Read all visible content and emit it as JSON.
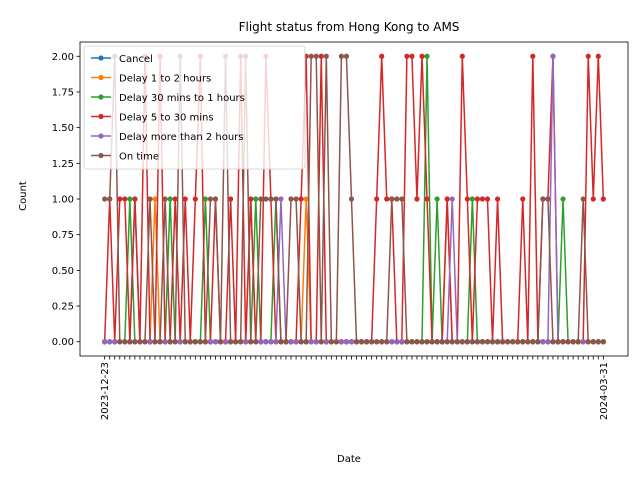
{
  "chart_data": {
    "type": "line",
    "title": "Flight status from Hong Kong to AMS",
    "xlabel": "Date",
    "ylabel": "Count",
    "ylim": [
      -0.1,
      2.1
    ],
    "yticks": [
      "0.00",
      "0.25",
      "0.50",
      "0.75",
      "1.00",
      "1.25",
      "1.50",
      "1.75",
      "2.00"
    ],
    "ytick_values": [
      0,
      0.25,
      0.5,
      0.75,
      1.0,
      1.25,
      1.5,
      1.75,
      2.0
    ],
    "grid": false,
    "legend_position": "top-left",
    "x_first_label": "2023-12-23",
    "x_last_label": "2024-03-31",
    "x_count": 100,
    "series": [
      {
        "name": "Cancel",
        "color": "#1f77b4",
        "values": [
          0,
          0,
          0,
          0,
          0,
          0,
          1,
          0,
          0,
          0,
          0,
          0,
          0,
          0,
          0,
          0,
          0,
          0,
          0,
          0,
          0,
          0,
          0,
          0,
          0,
          0,
          0,
          0,
          0,
          0,
          0,
          0,
          0,
          0,
          0,
          0,
          0,
          0,
          0,
          0,
          0,
          0,
          0,
          0,
          0,
          0,
          0,
          0,
          0,
          0,
          0,
          0,
          0,
          0,
          0,
          0,
          0,
          0,
          0,
          0,
          0,
          0,
          0,
          0,
          0,
          0,
          0,
          0,
          0,
          0,
          0,
          0,
          0,
          0,
          0,
          0,
          0,
          0,
          0,
          0,
          0,
          0,
          0,
          0,
          0,
          0,
          0,
          0,
          0,
          0,
          0,
          0,
          0,
          0,
          0,
          0,
          0,
          0,
          0,
          0
        ]
      },
      {
        "name": "Delay 1 to 2 hours",
        "color": "#ff7f0e",
        "values": [
          0,
          0,
          0,
          0,
          0,
          0,
          0,
          0,
          0,
          0,
          1,
          0,
          0,
          0,
          0,
          0,
          0,
          0,
          0,
          0,
          0,
          0,
          0,
          0,
          0,
          0,
          0,
          0,
          0,
          1,
          0,
          0,
          0,
          0,
          0,
          0,
          0,
          0,
          0,
          0,
          1,
          0,
          0,
          0,
          0,
          0,
          0,
          0,
          0,
          0,
          0,
          0,
          0,
          0,
          0,
          0,
          0,
          0,
          0,
          0,
          0,
          0,
          0,
          0,
          0,
          0,
          0,
          0,
          1,
          0,
          0,
          0,
          0,
          0,
          0,
          0,
          0,
          0,
          0,
          0,
          0,
          0,
          0,
          0,
          0,
          0,
          0,
          0,
          0,
          0,
          0,
          0,
          0,
          0,
          0,
          0,
          0,
          0,
          0,
          0
        ]
      },
      {
        "name": "Delay 30 mins to 1 hours",
        "color": "#2ca02c",
        "values": [
          0,
          0,
          0,
          0,
          0,
          1,
          0,
          0,
          0,
          0,
          0,
          0,
          0,
          1,
          0,
          0,
          0,
          0,
          0,
          0,
          1,
          0,
          0,
          0,
          0,
          0,
          0,
          0,
          0,
          0,
          1,
          0,
          0,
          0,
          1,
          0,
          0,
          0,
          0,
          0,
          0,
          0,
          0,
          0,
          0,
          0,
          0,
          0,
          0,
          0,
          0,
          0,
          0,
          0,
          0,
          0,
          0,
          0,
          0,
          0,
          0,
          0,
          0,
          0,
          2,
          0,
          1,
          0,
          0,
          0,
          0,
          0,
          0,
          1,
          0,
          0,
          0,
          0,
          0,
          0,
          0,
          0,
          0,
          0,
          0,
          0,
          0,
          0,
          0,
          0,
          0,
          1,
          0,
          0,
          0,
          0,
          0,
          0,
          0,
          0
        ]
      },
      {
        "name": "Delay 5 to 30 mins",
        "color": "#d62728",
        "values": [
          0,
          1,
          0,
          1,
          1,
          0,
          1,
          0,
          2,
          0,
          0,
          2,
          0,
          0,
          1,
          0,
          1,
          0,
          1,
          2,
          0,
          0,
          1,
          0,
          0,
          1,
          0,
          2,
          0,
          1,
          0,
          0,
          2,
          1,
          0,
          0,
          0,
          0,
          0,
          1,
          2,
          0,
          0,
          2,
          0,
          0,
          0,
          0,
          0,
          0,
          0,
          0,
          0,
          0,
          1,
          2,
          1,
          1,
          0,
          0,
          2,
          2,
          1,
          2,
          1,
          0,
          0,
          0,
          1,
          0,
          0,
          2,
          1,
          0,
          1,
          1,
          1,
          0,
          1,
          0,
          0,
          0,
          0,
          1,
          0,
          2,
          0,
          1,
          1,
          2,
          0,
          0,
          0,
          0,
          0,
          0,
          2,
          1,
          2,
          1
        ]
      },
      {
        "name": "Delay more than 2 hours",
        "color": "#9467bd",
        "values": [
          0,
          0,
          0,
          0,
          0,
          0,
          0,
          0,
          0,
          0,
          0,
          0,
          0,
          0,
          0,
          0,
          0,
          0,
          0,
          0,
          0,
          0,
          0,
          0,
          0,
          0,
          0,
          0,
          0,
          0,
          0,
          0,
          0,
          0,
          0,
          1,
          0,
          0,
          0,
          0,
          0,
          0,
          0,
          0,
          0,
          0,
          0,
          0,
          0,
          0,
          0,
          0,
          0,
          0,
          0,
          0,
          0,
          0,
          0,
          0,
          0,
          0,
          0,
          0,
          0,
          0,
          0,
          0,
          0,
          1,
          0,
          0,
          0,
          0,
          0,
          0,
          0,
          0,
          0,
          0,
          0,
          0,
          0,
          0,
          0,
          0,
          0,
          0,
          0,
          2,
          0,
          0,
          0,
          0,
          0,
          0,
          0,
          0,
          0,
          0
        ]
      },
      {
        "name": "On time",
        "color": "#8c564b",
        "values": [
          1,
          1,
          2,
          0,
          0,
          0,
          0,
          0,
          0,
          1,
          0,
          0,
          1,
          0,
          0,
          2,
          0,
          0,
          0,
          0,
          0,
          1,
          1,
          0,
          2,
          0,
          0,
          0,
          2,
          0,
          0,
          1,
          1,
          1,
          1,
          0,
          0,
          1,
          1,
          0,
          0,
          2,
          2,
          0,
          2,
          0,
          0,
          2,
          2,
          1,
          0,
          0,
          0,
          0,
          0,
          0,
          0,
          1,
          1,
          1,
          0,
          0,
          0,
          0,
          0,
          0,
          0,
          0,
          0,
          0,
          0,
          0,
          0,
          0,
          0,
          0,
          0,
          0,
          0,
          0,
          0,
          0,
          0,
          0,
          0,
          0,
          0,
          1,
          1,
          0,
          0,
          0,
          0,
          0,
          0,
          1,
          0,
          0,
          0,
          0
        ]
      }
    ]
  }
}
